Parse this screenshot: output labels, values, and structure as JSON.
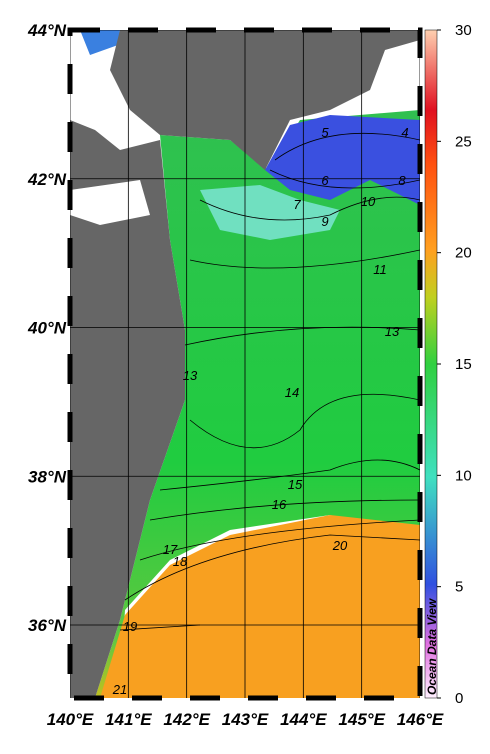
{
  "map": {
    "lat_ticks": [
      {
        "value": 44,
        "label": "44°N"
      },
      {
        "value": 42,
        "label": "42°N"
      },
      {
        "value": 40,
        "label": "40°N"
      },
      {
        "value": 38,
        "label": "38°N"
      },
      {
        "value": 36,
        "label": "36°N"
      }
    ],
    "lon_ticks": [
      {
        "value": 140,
        "label": "140°E"
      },
      {
        "value": 141,
        "label": "141°E"
      },
      {
        "value": 142,
        "label": "142°E"
      },
      {
        "value": 143,
        "label": "143°E"
      },
      {
        "value": 144,
        "label": "144°E"
      },
      {
        "value": 145,
        "label": "145°E"
      },
      {
        "value": 146,
        "label": "146°E"
      }
    ],
    "contour_labels": [
      5,
      4,
      6,
      8,
      7,
      10,
      9,
      11,
      13,
      13,
      14,
      15,
      16,
      20,
      17,
      18,
      19,
      21
    ],
    "colorbar": {
      "range": [
        0,
        30
      ],
      "ticks": [
        0,
        5,
        10,
        15,
        20,
        25,
        30
      ]
    },
    "watermark": "Ocean Data View"
  }
}
